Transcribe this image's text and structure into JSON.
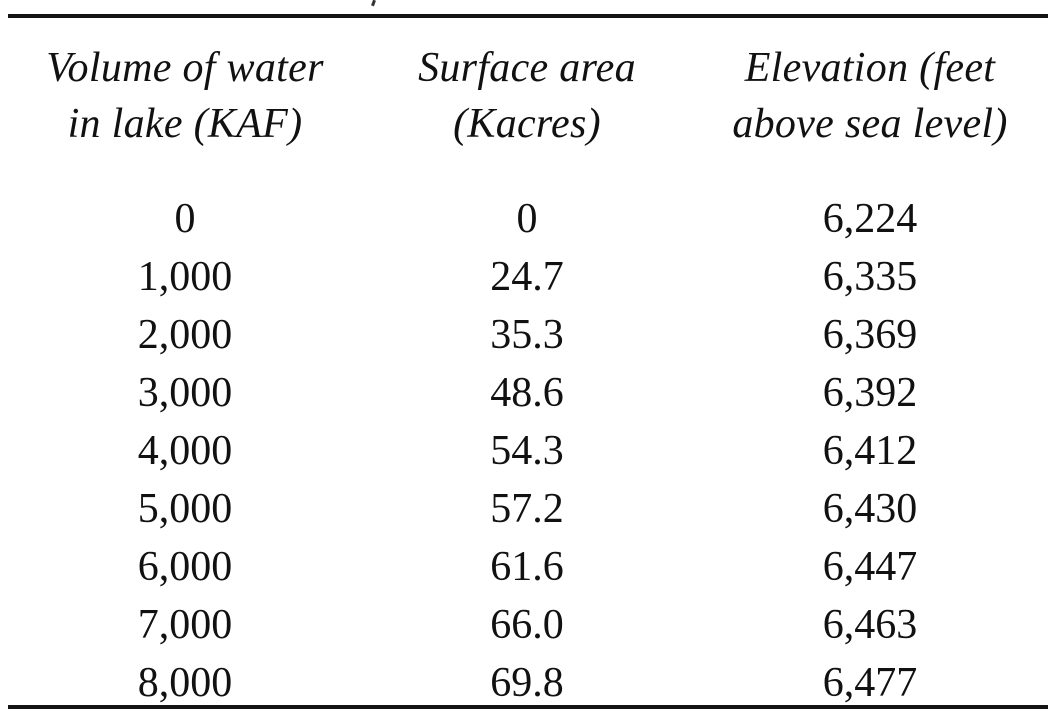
{
  "table": {
    "headers": [
      {
        "line1": "Volume of water",
        "line2": "in lake (KAF)"
      },
      {
        "line1": "Surface area",
        "line2": "(Kacres)"
      },
      {
        "line1": "Elevation (feet",
        "line2": "above sea level)"
      }
    ],
    "rows": [
      [
        "0",
        "0",
        "6,224"
      ],
      [
        "1,000",
        "24.7",
        "6,335"
      ],
      [
        "2,000",
        "35.3",
        "6,369"
      ],
      [
        "3,000",
        "48.6",
        "6,392"
      ],
      [
        "4,000",
        "54.3",
        "6,412"
      ],
      [
        "5,000",
        "57.2",
        "6,430"
      ],
      [
        "6,000",
        "61.6",
        "6,447"
      ],
      [
        "7,000",
        "66.0",
        "6,463"
      ],
      [
        "8,000",
        "69.8",
        "6,477"
      ]
    ]
  }
}
